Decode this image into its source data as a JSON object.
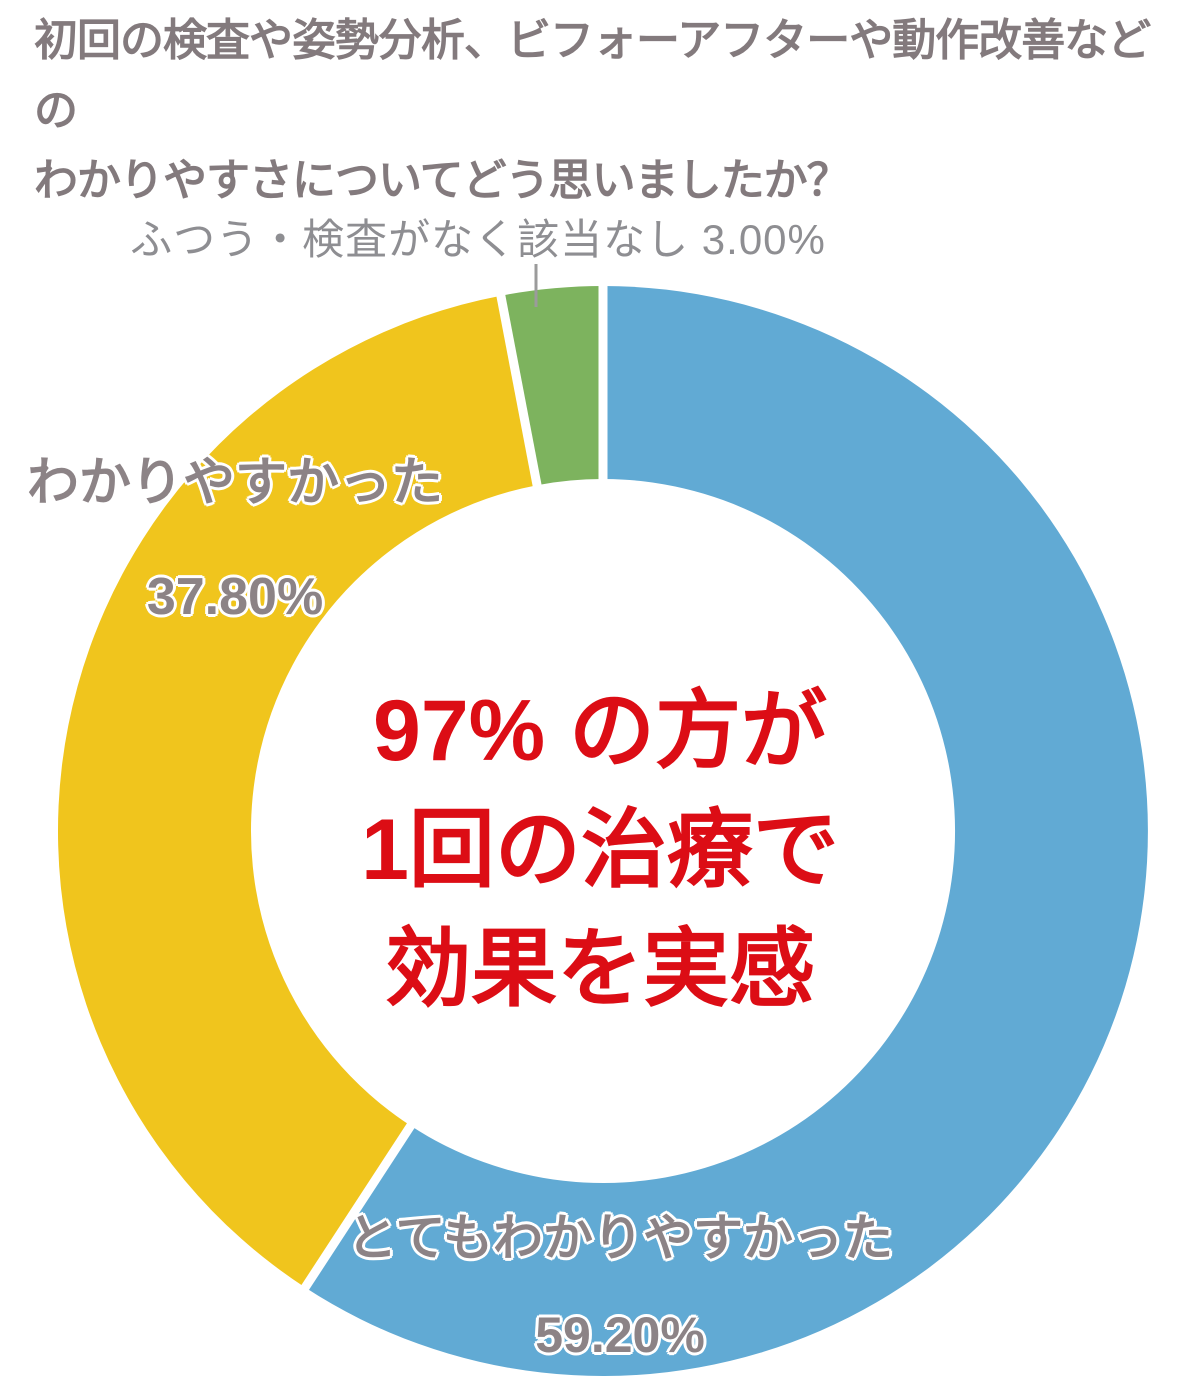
{
  "title": {
    "line1": "初回の検査や姿勢分析、ビフォーアフターや動作改善などの",
    "line2": "わかりやすさについてどう思いましたか？"
  },
  "colors": {
    "background": "#ffffff",
    "title_gray": "#837a7d",
    "label_gray": "#8c8386",
    "thin_label_gray": "#8e8e92",
    "callout_red": "#dc0d15",
    "leader_gray": "#9b9b9b",
    "separator_white": "#ffffff"
  },
  "chart_data": {
    "type": "pie",
    "subtype": "donut",
    "title": "初回の検査や姿勢分析、ビフォーアフターや動作改善などのわかりやすさについてどう思いましたか？",
    "total": 100,
    "start_angle_deg": 0,
    "direction": "clockwise",
    "grid": false,
    "legend_position": "labels-on-chart",
    "segments": [
      {
        "name": "とてもわかりやすかった",
        "value": 59.2,
        "pct_label": "59.20%",
        "color": "#61aad4"
      },
      {
        "name": "わかりやすかった",
        "value": 37.8,
        "pct_label": "37.80%",
        "color": "#f0c51d"
      },
      {
        "name": "ふつう・検査がなく該当なし",
        "value": 3.0,
        "pct_label": "3.00%",
        "color": "#7db35e"
      }
    ],
    "center_callout": {
      "lines": [
        "97% の方が",
        "1回の治療で",
        "効果を実感"
      ]
    }
  }
}
